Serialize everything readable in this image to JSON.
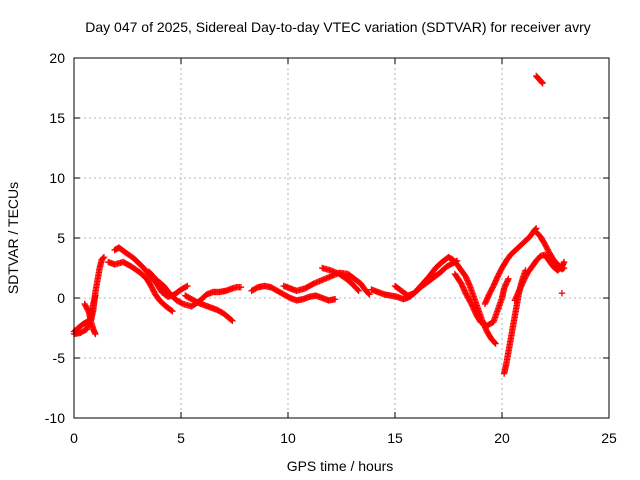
{
  "chart_data": {
    "type": "scatter",
    "title": "Day 047 of 2025, Sidereal Day-to-day VTEC variation (SDTVAR) for receiver avry",
    "xlabel": "GPS time / hours",
    "ylabel": "SDTVAR / TECUs",
    "xlim": [
      0,
      25
    ],
    "ylim": [
      -10,
      20
    ],
    "xticks": [
      0,
      5,
      10,
      15,
      20,
      25
    ],
    "yticks": [
      -10,
      -5,
      0,
      5,
      10,
      15,
      20
    ],
    "grid": true,
    "marker": "plus",
    "color": "#ff0000",
    "series": [
      {
        "name": "SDTVAR",
        "note": "polyline trajectories of receiver VTEC variation; marks drawn densely along each track",
        "tracks": [
          [
            [
              0.0,
              -2.8
            ],
            [
              0.2,
              -2.5
            ],
            [
              0.4,
              -2.2
            ],
            [
              0.6,
              -2.0
            ],
            [
              0.8,
              -1.8
            ],
            [
              0.9,
              -1.0
            ],
            [
              1.0,
              0.5
            ],
            [
              1.1,
              1.5
            ],
            [
              1.2,
              2.5
            ],
            [
              1.3,
              3.2
            ],
            [
              1.4,
              3.4
            ]
          ],
          [
            [
              0.0,
              -3.0
            ],
            [
              0.3,
              -2.9
            ],
            [
              0.6,
              -2.6
            ],
            [
              0.8,
              -1.5
            ],
            [
              0.9,
              -0.5
            ],
            [
              1.0,
              0.2
            ]
          ],
          [
            [
              0.5,
              -0.5
            ],
            [
              0.7,
              -1.2
            ],
            [
              0.8,
              -2.0
            ],
            [
              0.9,
              -2.6
            ],
            [
              1.0,
              -3.0
            ]
          ],
          [
            [
              1.9,
              4.0
            ],
            [
              2.1,
              4.2
            ],
            [
              2.4,
              3.8
            ],
            [
              2.8,
              3.3
            ],
            [
              3.2,
              2.6
            ],
            [
              3.6,
              1.8
            ],
            [
              3.9,
              1.1
            ],
            [
              4.1,
              0.5
            ],
            [
              4.4,
              0.1
            ],
            [
              4.7,
              0.3
            ],
            [
              5.0,
              0.7
            ],
            [
              5.3,
              1.0
            ]
          ],
          [
            [
              1.6,
              3.0
            ],
            [
              1.9,
              2.8
            ],
            [
              2.3,
              3.0
            ],
            [
              2.7,
              2.6
            ],
            [
              3.1,
              2.1
            ],
            [
              3.4,
              1.6
            ],
            [
              3.6,
              1.0
            ],
            [
              3.8,
              0.3
            ],
            [
              4.0,
              -0.2
            ],
            [
              4.3,
              -0.7
            ],
            [
              4.6,
              -1.1
            ]
          ],
          [
            [
              3.5,
              2.2
            ],
            [
              3.8,
              1.6
            ],
            [
              4.2,
              1.0
            ],
            [
              4.5,
              0.3
            ],
            [
              4.8,
              -0.2
            ],
            [
              5.1,
              -0.5
            ],
            [
              5.5,
              -0.7
            ],
            [
              5.9,
              -0.2
            ],
            [
              6.2,
              0.3
            ],
            [
              6.5,
              0.5
            ],
            [
              6.8,
              0.5
            ],
            [
              7.1,
              0.6
            ],
            [
              7.4,
              0.8
            ],
            [
              7.6,
              0.9
            ],
            [
              7.8,
              0.9
            ]
          ],
          [
            [
              5.2,
              0.2
            ],
            [
              5.5,
              -0.1
            ],
            [
              5.8,
              -0.4
            ],
            [
              6.1,
              -0.6
            ],
            [
              6.4,
              -0.8
            ],
            [
              6.7,
              -1.0
            ],
            [
              7.0,
              -1.3
            ],
            [
              7.2,
              -1.6
            ],
            [
              7.4,
              -1.9
            ]
          ],
          [
            [
              8.3,
              0.6
            ],
            [
              8.6,
              0.9
            ],
            [
              8.9,
              1.0
            ],
            [
              9.2,
              0.9
            ],
            [
              9.5,
              0.6
            ],
            [
              9.8,
              0.3
            ],
            [
              10.1,
              0.0
            ],
            [
              10.4,
              -0.2
            ],
            [
              10.7,
              -0.1
            ],
            [
              11.0,
              0.1
            ],
            [
              11.3,
              0.2
            ],
            [
              11.6,
              0.0
            ],
            [
              11.9,
              -0.2
            ],
            [
              12.2,
              -0.1
            ]
          ],
          [
            [
              9.8,
              1.0
            ],
            [
              10.1,
              0.8
            ],
            [
              10.4,
              0.6
            ],
            [
              10.8,
              0.8
            ],
            [
              11.2,
              1.2
            ],
            [
              11.6,
              1.5
            ],
            [
              12.0,
              1.8
            ],
            [
              12.4,
              2.1
            ],
            [
              12.8,
              2.0
            ],
            [
              13.1,
              1.6
            ],
            [
              13.4,
              1.2
            ],
            [
              13.6,
              0.7
            ],
            [
              13.8,
              0.3
            ]
          ],
          [
            [
              11.6,
              2.5
            ],
            [
              12.0,
              2.3
            ],
            [
              12.4,
              2.0
            ],
            [
              12.8,
              1.5
            ],
            [
              13.1,
              1.0
            ],
            [
              13.3,
              0.6
            ]
          ],
          [
            [
              13.9,
              0.7
            ],
            [
              14.2,
              0.5
            ],
            [
              14.5,
              0.3
            ],
            [
              14.8,
              0.2
            ],
            [
              15.1,
              0.1
            ],
            [
              15.4,
              -0.1
            ],
            [
              15.7,
              0.1
            ],
            [
              16.0,
              0.6
            ],
            [
              16.3,
              1.2
            ],
            [
              16.6,
              1.8
            ],
            [
              16.9,
              2.5
            ],
            [
              17.2,
              3.0
            ],
            [
              17.5,
              3.4
            ],
            [
              17.7,
              3.2
            ],
            [
              17.9,
              2.8
            ],
            [
              18.1,
              2.3
            ],
            [
              18.3,
              1.8
            ],
            [
              18.5,
              1.0
            ],
            [
              18.7,
              0.0
            ],
            [
              18.9,
              -1.0
            ],
            [
              19.1,
              -2.0
            ],
            [
              19.3,
              -2.8
            ],
            [
              19.5,
              -3.4
            ],
            [
              19.7,
              -3.8
            ]
          ],
          [
            [
              15.0,
              1.0
            ],
            [
              15.3,
              0.6
            ],
            [
              15.6,
              0.2
            ],
            [
              15.9,
              0.4
            ],
            [
              16.2,
              0.9
            ],
            [
              16.5,
              1.3
            ],
            [
              16.8,
              1.7
            ],
            [
              17.1,
              2.1
            ],
            [
              17.4,
              2.6
            ],
            [
              17.7,
              2.9
            ],
            [
              17.9,
              3.1
            ]
          ],
          [
            [
              17.8,
              2.0
            ],
            [
              18.1,
              1.2
            ],
            [
              18.3,
              0.4
            ],
            [
              18.6,
              -0.6
            ],
            [
              18.8,
              -1.4
            ],
            [
              19.0,
              -2.0
            ],
            [
              19.3,
              -2.3
            ],
            [
              19.6,
              -2.0
            ],
            [
              19.8,
              -1.0
            ],
            [
              20.0,
              0.0
            ],
            [
              20.1,
              0.8
            ],
            [
              20.3,
              1.6
            ]
          ],
          [
            [
              19.2,
              -0.5
            ],
            [
              19.4,
              0.3
            ],
            [
              19.6,
              1.0
            ],
            [
              19.8,
              1.8
            ],
            [
              20.0,
              2.5
            ],
            [
              20.2,
              3.1
            ],
            [
              20.4,
              3.6
            ],
            [
              20.7,
              4.1
            ],
            [
              21.0,
              4.6
            ],
            [
              21.3,
              5.1
            ],
            [
              21.5,
              5.6
            ],
            [
              21.6,
              5.8
            ]
          ],
          [
            [
              20.1,
              -6.3
            ],
            [
              20.2,
              -5.5
            ],
            [
              20.3,
              -4.5
            ],
            [
              20.4,
              -3.5
            ],
            [
              20.5,
              -2.5
            ],
            [
              20.6,
              -1.5
            ],
            [
              20.7,
              -0.5
            ],
            [
              20.8,
              0.5
            ],
            [
              20.9,
              1.2
            ],
            [
              21.0,
              1.8
            ],
            [
              21.1,
              2.3
            ]
          ],
          [
            [
              20.6,
              -0.2
            ],
            [
              20.8,
              0.6
            ],
            [
              21.0,
              1.4
            ],
            [
              21.2,
              2.1
            ],
            [
              21.4,
              2.6
            ],
            [
              21.6,
              3.1
            ],
            [
              21.8,
              3.5
            ],
            [
              22.0,
              3.6
            ],
            [
              22.2,
              3.1
            ],
            [
              22.4,
              2.6
            ],
            [
              22.6,
              2.3
            ],
            [
              22.8,
              2.6
            ],
            [
              22.9,
              3.0
            ]
          ],
          [
            [
              21.6,
              5.5
            ],
            [
              21.8,
              5.1
            ],
            [
              22.0,
              4.5
            ],
            [
              22.2,
              3.8
            ],
            [
              22.4,
              3.2
            ],
            [
              22.6,
              2.8
            ],
            [
              22.8,
              2.4
            ],
            [
              22.9,
              2.5
            ]
          ],
          [
            [
              21.6,
              18.5
            ],
            [
              21.7,
              18.3
            ],
            [
              21.8,
              18.1
            ],
            [
              21.9,
              17.9
            ]
          ],
          [
            [
              22.8,
              0.4
            ]
          ]
        ]
      }
    ]
  }
}
